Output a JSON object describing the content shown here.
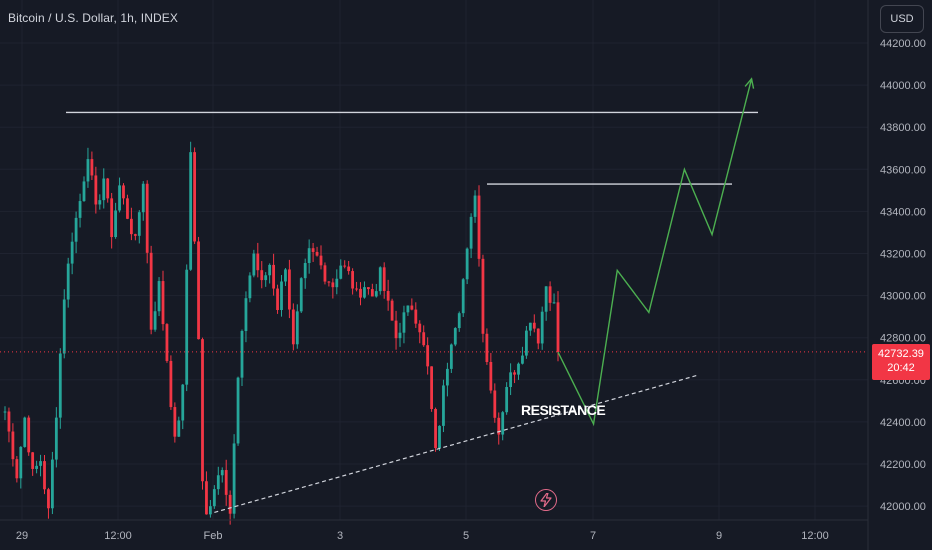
{
  "header": {
    "symbol": "Bitcoin / U.S. Dollar, 1h, INDEX",
    "currency_button": "USD"
  },
  "price_badge": {
    "value": "42732.39",
    "countdown": "20:42"
  },
  "icons": {
    "event_marker": "lightning-bolt-icon"
  },
  "colors": {
    "background": "#161a25",
    "up": "#26a69a",
    "down": "#f23645",
    "projection": "#4caf50",
    "level_line": "#d1d4dc"
  },
  "chart_data": {
    "type": "candlestick",
    "title": "Bitcoin / U.S. Dollar, 1h, INDEX",
    "ylim": [
      41960,
      44240
    ],
    "y_ticks": [
      "44200.00",
      "44000.00",
      "43800.00",
      "43600.00",
      "43400.00",
      "43200.00",
      "43000.00",
      "42800.00",
      "42600.00",
      "42400.00",
      "42200.00",
      "42000.00"
    ],
    "x_ticks": [
      "29",
      "12:00",
      "Feb",
      "3",
      "5",
      "7",
      "9",
      "12:00"
    ],
    "last_price": 42732.39,
    "ohlc_path": [
      [
        0,
        42450
      ],
      [
        3,
        42150
      ],
      [
        5,
        42420
      ],
      [
        7,
        42150
      ],
      [
        9,
        42220
      ],
      [
        11,
        41970
      ],
      [
        13,
        42450
      ],
      [
        15,
        43000
      ],
      [
        17,
        43280
      ],
      [
        19,
        43450
      ],
      [
        21,
        43680
      ],
      [
        23,
        43400
      ],
      [
        25,
        43560
      ],
      [
        27,
        43300
      ],
      [
        29,
        43520
      ],
      [
        31,
        43380
      ],
      [
        33,
        43250
      ],
      [
        35,
        43550
      ],
      [
        37,
        42850
      ],
      [
        39,
        43050
      ],
      [
        41,
        42700
      ],
      [
        43,
        42300
      ],
      [
        45,
        42550
      ],
      [
        47,
        43700
      ],
      [
        49,
        42800
      ],
      [
        50,
        42100
      ],
      [
        51,
        41950
      ],
      [
        53,
        42100
      ],
      [
        55,
        42200
      ],
      [
        57,
        41970
      ],
      [
        59,
        42600
      ],
      [
        61,
        43000
      ],
      [
        63,
        43200
      ],
      [
        65,
        43050
      ],
      [
        67,
        43150
      ],
      [
        69,
        42950
      ],
      [
        71,
        43150
      ],
      [
        73,
        42750
      ],
      [
        75,
        43050
      ],
      [
        77,
        43200
      ],
      [
        79,
        43180
      ],
      [
        81,
        43100
      ],
      [
        83,
        43050
      ],
      [
        85,
        43150
      ],
      [
        87,
        43100
      ],
      [
        89,
        43000
      ],
      [
        91,
        43050
      ],
      [
        93,
        43000
      ],
      [
        95,
        43100
      ],
      [
        97,
        42950
      ],
      [
        99,
        42800
      ],
      [
        101,
        42900
      ],
      [
        103,
        42950
      ],
      [
        105,
        42850
      ],
      [
        107,
        42650
      ],
      [
        109,
        42250
      ],
      [
        111,
        42550
      ],
      [
        113,
        42800
      ],
      [
        115,
        42950
      ],
      [
        117,
        43200
      ],
      [
        119,
        43500
      ],
      [
        121,
        42850
      ],
      [
        123,
        42550
      ],
      [
        125,
        42350
      ],
      [
        127,
        42580
      ],
      [
        129,
        42650
      ],
      [
        131,
        42750
      ],
      [
        133,
        42900
      ],
      [
        135,
        42800
      ],
      [
        137,
        43050
      ],
      [
        139,
        42950
      ],
      [
        140,
        42732
      ]
    ],
    "horizontal_levels": [
      43870,
      43530
    ],
    "trendline": {
      "from": [
        53,
        41970
      ],
      "to": [
        175,
        42620
      ]
    },
    "annotation": "RESISTANCE",
    "projection_path": [
      [
        140,
        42732
      ],
      [
        149,
        42390
      ],
      [
        155,
        43120
      ],
      [
        163,
        42920
      ],
      [
        172,
        43600
      ],
      [
        179,
        43290
      ],
      [
        189,
        44030
      ]
    ]
  }
}
